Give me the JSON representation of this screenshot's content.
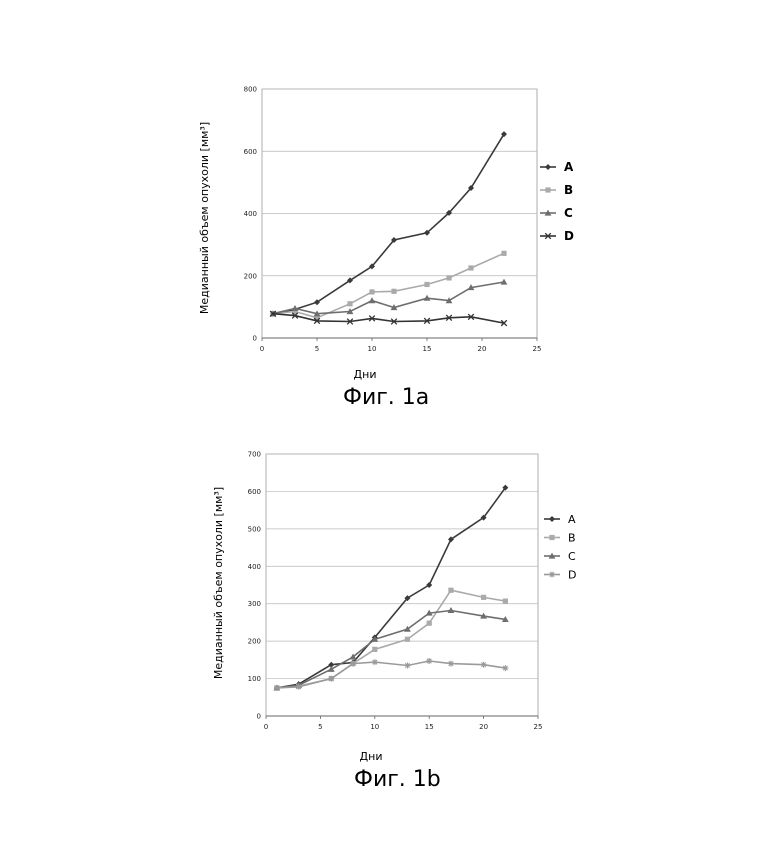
{
  "chart_data": [
    {
      "type": "line",
      "caption": "Фиг. 1a",
      "xlabel": "Дни",
      "ylabel": "Медианный объем опухоли  [мм³]",
      "xlim": [
        0,
        25
      ],
      "ylim": [
        0,
        800
      ],
      "xticks": [
        0,
        5,
        10,
        15,
        20,
        25
      ],
      "yticks": [
        0,
        200,
        400,
        600,
        800
      ],
      "grid": "horizontal",
      "legend": "right",
      "series": [
        {
          "name": "A",
          "marker": "diamond",
          "color": "#3a3a3a",
          "x": [
            1,
            3,
            5,
            8,
            10,
            12,
            15,
            17,
            19,
            22
          ],
          "y": [
            78,
            92,
            115,
            185,
            230,
            315,
            338,
            402,
            482,
            655
          ]
        },
        {
          "name": "B",
          "marker": "square",
          "color": "#aaaaaa",
          "x": [
            1,
            3,
            5,
            8,
            10,
            12,
            15,
            17,
            19,
            22
          ],
          "y": [
            78,
            85,
            65,
            110,
            148,
            150,
            172,
            193,
            225,
            272
          ]
        },
        {
          "name": "C",
          "marker": "triangle",
          "color": "#6e6e6e",
          "x": [
            1,
            3,
            5,
            8,
            10,
            12,
            15,
            17,
            19,
            22
          ],
          "y": [
            78,
            95,
            78,
            85,
            120,
            98,
            128,
            120,
            162,
            180
          ]
        },
        {
          "name": "D",
          "marker": "x",
          "color": "#333333",
          "x": [
            1,
            3,
            5,
            8,
            10,
            12,
            15,
            17,
            19,
            22
          ],
          "y": [
            78,
            72,
            55,
            53,
            63,
            53,
            55,
            65,
            68,
            48
          ]
        }
      ]
    },
    {
      "type": "line",
      "caption": "Фиг. 1b",
      "xlabel": "Дни",
      "ylabel": "Медианный объем опухоли  [мм³]",
      "xlim": [
        0,
        25
      ],
      "ylim": [
        0,
        700
      ],
      "xticks": [
        0,
        5,
        10,
        15,
        20,
        25
      ],
      "xtick_labels": [
        "0",
        "5",
        "10",
        "15",
        "20",
        "25"
      ],
      "yticks": [
        0,
        100,
        200,
        300,
        400,
        500,
        600,
        700
      ],
      "grid": "horizontal",
      "legend": "right",
      "series": [
        {
          "name": "A",
          "marker": "diamond",
          "color": "#3a3a3a",
          "x": [
            1,
            3,
            6,
            8,
            10,
            13,
            15,
            17,
            20,
            22
          ],
          "y": [
            75,
            85,
            137,
            143,
            210,
            315,
            350,
            472,
            530,
            610
          ]
        },
        {
          "name": "B",
          "marker": "square",
          "color": "#aaaaaa",
          "x": [
            1,
            3,
            6,
            8,
            10,
            13,
            15,
            17,
            20,
            22
          ],
          "y": [
            75,
            80,
            100,
            140,
            178,
            205,
            248,
            336,
            317,
            307
          ]
        },
        {
          "name": "C",
          "marker": "triangle",
          "color": "#6e6e6e",
          "x": [
            1,
            3,
            6,
            8,
            10,
            13,
            15,
            17,
            20,
            22
          ],
          "y": [
            75,
            82,
            125,
            158,
            205,
            232,
            275,
            282,
            267,
            258
          ]
        },
        {
          "name": "D",
          "marker": "star",
          "color": "#9a9a9a",
          "x": [
            1,
            3,
            6,
            8,
            10,
            13,
            15,
            17,
            20,
            22
          ],
          "y": [
            75,
            78,
            100,
            140,
            144,
            135,
            147,
            140,
            137,
            128
          ]
        }
      ]
    }
  ]
}
